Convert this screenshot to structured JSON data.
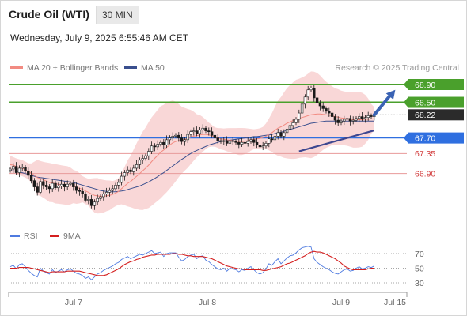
{
  "header": {
    "title": "Crude Oil (WTI)",
    "timeframe": "30 MIN",
    "timestamp": "Wednesday, July 9, 2025 6:55:46 AM CET"
  },
  "legend": {
    "ma20_label": "MA 20 + Bollinger Bands",
    "ma50_label": "MA 50",
    "credit": "Research © 2025 Trading Central"
  },
  "rsi_legend": {
    "rsi_label": "RSI",
    "ma_label": "9MA"
  },
  "colors": {
    "resistance": "#4aa02c",
    "pivot": "#2f6fe0",
    "support": "#d23b3b",
    "bollinger": "#f7c9c9",
    "ma20": "#f28b82",
    "ma50": "#3a4f8e",
    "trendline": "#3d4790",
    "arrow": "#3a63b4",
    "candle": "#1a1a1a",
    "candle_up": "#ffffff",
    "rsi": "#4f7be0",
    "rsi_ma": "#d41f1f"
  },
  "chart_data": [
    {
      "type": "candlestick",
      "y_range": [
        66.1,
        69.05
      ],
      "x_labels": [
        "Jul 7",
        "Jul 8",
        "Jul 9",
        "Jul 15"
      ],
      "levels": [
        {
          "value": 68.9,
          "label": "68.90",
          "kind": "resistance"
        },
        {
          "value": 68.5,
          "label": "68.50",
          "kind": "resistance"
        },
        {
          "value": 68.22,
          "label": "68.22",
          "kind": "last"
        },
        {
          "value": 67.7,
          "label": "67.70",
          "kind": "pivot"
        },
        {
          "value": 67.35,
          "label": "67.35",
          "kind": "support"
        },
        {
          "value": 66.9,
          "label": "66.90",
          "kind": "support"
        }
      ],
      "close": [
        67.0,
        67.06,
        66.92,
        67.02,
        67.04,
        66.96,
        66.86,
        66.74,
        66.6,
        66.48,
        66.72,
        66.64,
        66.6,
        66.56,
        66.68,
        66.58,
        66.62,
        66.66,
        66.6,
        66.66,
        66.68,
        66.6,
        66.52,
        66.5,
        66.44,
        66.3,
        66.32,
        66.18,
        66.26,
        66.34,
        66.38,
        66.44,
        66.48,
        66.52,
        66.56,
        66.64,
        66.7,
        66.84,
        66.92,
        66.98,
        66.94,
        67.02,
        67.1,
        67.2,
        67.24,
        67.3,
        67.4,
        67.52,
        67.5,
        67.56,
        67.6,
        67.54,
        67.66,
        67.7,
        67.74,
        67.76,
        67.7,
        67.62,
        67.66,
        67.78,
        67.84,
        67.86,
        67.8,
        67.88,
        67.92,
        67.86,
        67.84,
        67.76,
        67.7,
        67.64,
        67.62,
        67.64,
        67.58,
        67.64,
        67.62,
        67.6,
        67.56,
        67.6,
        67.58,
        67.62,
        67.66,
        67.6,
        67.54,
        67.5,
        67.52,
        67.58,
        67.68,
        67.66,
        67.74,
        67.82,
        67.74,
        67.82,
        67.9,
        67.98,
        68.04,
        68.12,
        68.26,
        68.46,
        68.62,
        68.78,
        68.82,
        68.6,
        68.48,
        68.42,
        68.36,
        68.3,
        68.26,
        68.18,
        68.1,
        68.04,
        68.08,
        68.12,
        68.14,
        68.08,
        68.1,
        68.14,
        68.18,
        68.14,
        68.16,
        68.2,
        68.18,
        68.22
      ],
      "ma20": [
        67.1,
        67.09,
        67.06,
        67.04,
        67.02,
        66.99,
        66.95,
        66.91,
        66.86,
        66.81,
        66.79,
        66.76,
        66.73,
        66.7,
        66.69,
        66.67,
        66.66,
        66.65,
        66.64,
        66.63,
        66.62,
        66.61,
        66.59,
        66.57,
        66.55,
        66.51,
        66.48,
        66.44,
        66.41,
        66.4,
        66.39,
        66.39,
        66.4,
        66.41,
        66.43,
        66.46,
        66.5,
        66.56,
        66.62,
        66.68,
        66.72,
        66.78,
        66.84,
        66.9,
        66.96,
        67.02,
        67.09,
        67.17,
        67.24,
        67.31,
        67.38,
        67.43,
        67.49,
        67.54,
        67.59,
        67.62,
        67.64,
        67.65,
        67.67,
        67.69,
        67.72,
        67.74,
        67.75,
        67.77,
        67.78,
        67.78,
        67.77,
        67.75,
        67.72,
        67.7,
        67.68,
        67.67,
        67.66,
        67.65,
        67.64,
        67.63,
        67.62,
        67.62,
        67.63,
        67.64,
        67.66,
        67.67,
        67.68,
        67.69,
        67.71,
        67.74,
        67.78,
        67.82,
        67.87,
        67.92,
        67.95,
        67.99,
        68.03,
        68.06,
        68.09,
        68.12,
        68.14,
        68.16,
        68.18,
        68.2,
        68.22,
        68.23,
        68.24,
        68.24,
        68.23,
        68.22,
        68.21,
        68.2,
        68.18,
        68.17,
        68.15,
        68.14,
        68.13,
        68.12,
        68.11,
        68.11,
        68.11,
        68.11,
        68.12,
        68.12,
        68.13,
        68.13
      ],
      "ma50": [
        66.96,
        66.96,
        66.95,
        66.94,
        66.92,
        66.9,
        66.88,
        66.86,
        66.84,
        66.82,
        66.81,
        66.8,
        66.79,
        66.78,
        66.77,
        66.76,
        66.75,
        66.74,
        66.73,
        66.72,
        66.71,
        66.7,
        66.68,
        66.66,
        66.64,
        66.62,
        66.6,
        66.58,
        66.56,
        66.54,
        66.52,
        66.51,
        66.5,
        66.49,
        66.49,
        66.49,
        66.5,
        66.51,
        66.52,
        66.54,
        66.56,
        66.58,
        66.6,
        66.62,
        66.65,
        66.68,
        66.71,
        66.75,
        66.79,
        66.83,
        66.88,
        66.92,
        66.97,
        67.02,
        67.07,
        67.12,
        67.17,
        67.22,
        67.26,
        67.31,
        67.35,
        67.39,
        67.42,
        67.45,
        67.48,
        67.51,
        67.54,
        67.56,
        67.58,
        67.6,
        67.62,
        67.63,
        67.64,
        67.65,
        67.66,
        67.67,
        67.68,
        67.69,
        67.7,
        67.71,
        67.72,
        67.73,
        67.73,
        67.74,
        67.75,
        67.76,
        67.77,
        67.78,
        67.8,
        67.81,
        67.83,
        67.85,
        67.87,
        67.89,
        67.91,
        67.93,
        67.95,
        67.97,
        67.99,
        68.01,
        68.03,
        68.04,
        68.05,
        68.06,
        68.07,
        68.08,
        68.08,
        68.08,
        68.08,
        68.08,
        68.08,
        68.08,
        68.08,
        68.08,
        68.08,
        68.08,
        68.08,
        68.08,
        68.08,
        68.08,
        68.08,
        68.08
      ],
      "trendline": [
        [
          96,
          67.4
        ],
        [
          121,
          67.87
        ]
      ],
      "arrow": [
        [
          121,
          68.22
        ],
        [
          128,
          68.78
        ]
      ]
    },
    {
      "type": "line",
      "title": "RSI",
      "y_ticks": [
        70,
        50,
        30
      ],
      "y_range": [
        20,
        80
      ],
      "rsi": [
        52,
        54,
        49,
        55,
        56,
        52,
        47,
        43,
        40,
        38,
        50,
        46,
        44,
        42,
        48,
        44,
        46,
        48,
        45,
        48,
        49,
        46,
        43,
        42,
        40,
        36,
        38,
        34,
        38,
        42,
        44,
        47,
        49,
        51,
        53,
        56,
        58,
        62,
        64,
        66,
        63,
        65,
        67,
        69,
        68,
        70,
        72,
        74,
        70,
        71,
        72,
        66,
        70,
        71,
        71,
        71,
        65,
        60,
        62,
        66,
        68,
        69,
        63,
        66,
        67,
        61,
        59,
        55,
        52,
        49,
        48,
        50,
        46,
        50,
        49,
        48,
        45,
        48,
        47,
        50,
        52,
        48,
        44,
        42,
        44,
        49,
        56,
        54,
        59,
        63,
        56,
        60,
        64,
        67,
        68,
        71,
        75,
        78,
        79,
        80,
        79,
        63,
        58,
        55,
        52,
        50,
        48,
        45,
        43,
        42,
        45,
        48,
        49,
        46,
        47,
        50,
        52,
        49,
        50,
        52,
        51,
        53
      ],
      "ma9": [
        50,
        50,
        50,
        51,
        51,
        51,
        51,
        50,
        49,
        48,
        47,
        46,
        45,
        44,
        45,
        45,
        45,
        45,
        45,
        46,
        46,
        46,
        46,
        46,
        45,
        44,
        43,
        42,
        41,
        40,
        40,
        40,
        41,
        43,
        45,
        47,
        49,
        52,
        55,
        57,
        59,
        60,
        62,
        63,
        65,
        66,
        67,
        68,
        68,
        69,
        69,
        69,
        69,
        69,
        70,
        70,
        69,
        69,
        68,
        67,
        67,
        66,
        66,
        66,
        66,
        65,
        64,
        63,
        61,
        59,
        57,
        55,
        53,
        52,
        51,
        50,
        49,
        49,
        48,
        48,
        48,
        48,
        48,
        48,
        47,
        47,
        48,
        49,
        50,
        51,
        52,
        54,
        56,
        57,
        59,
        61,
        63,
        65,
        67,
        70,
        72,
        73,
        72,
        72,
        71,
        69,
        67,
        65,
        63,
        60,
        57,
        53,
        51,
        49,
        48,
        48,
        48,
        48,
        48,
        49,
        50,
        50
      ]
    }
  ]
}
